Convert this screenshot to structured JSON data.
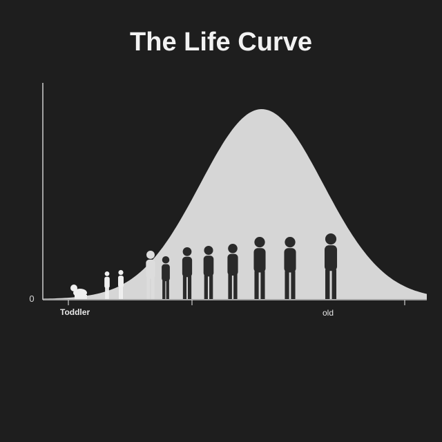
{
  "chart_data": {
    "type": "area",
    "title": "The Life Curve",
    "xlabel": "",
    "ylabel": "",
    "y_tick_labels": [
      "0"
    ],
    "x_tick_labels": [
      "Toddler",
      "old"
    ],
    "curve": {
      "peak_position": 0.57,
      "spread": 0.16,
      "fill_color": "#d6d6d6"
    },
    "figures": [
      {
        "stage": "infant",
        "color": "#f0f0f0"
      },
      {
        "stage": "toddler",
        "color": "#f0f0f0"
      },
      {
        "stage": "toddler",
        "color": "#f0f0f0"
      },
      {
        "stage": "child",
        "color": "#dcdcdc"
      },
      {
        "stage": "child",
        "color": "#2a2a2a"
      },
      {
        "stage": "youth",
        "color": "#2a2a2a"
      },
      {
        "stage": "teen",
        "color": "#2a2a2a"
      },
      {
        "stage": "young-adult",
        "color": "#2a2a2a"
      },
      {
        "stage": "adult",
        "color": "#2a2a2a"
      },
      {
        "stage": "adult",
        "color": "#2a2a2a"
      },
      {
        "stage": "senior",
        "color": "#2a2a2a"
      }
    ],
    "colors": {
      "background": "#1e1e1e",
      "axis": "#cfcfcf",
      "title": "#f2f2f2"
    }
  }
}
